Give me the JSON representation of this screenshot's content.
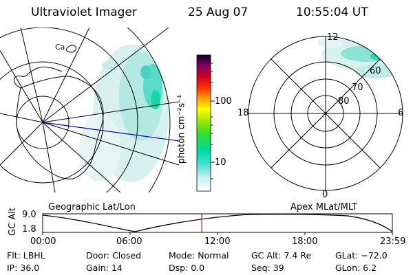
{
  "header": {
    "instrument": "Ultraviolet Imager",
    "date": "25 Aug 07",
    "time": "10:55:04 UT"
  },
  "colorbar": {
    "unit_label": "photon cm⁻²s⁻¹",
    "ticks": [
      "100",
      "10"
    ]
  },
  "left_panel": {
    "caption": "Geographic Lat/Lon"
  },
  "right_panel": {
    "caption": "Apex MLat/MLT",
    "mlt_labels": [
      "12",
      "18",
      "6",
      "0"
    ],
    "mlat_labels": [
      "60",
      "70",
      "80"
    ]
  },
  "altitude_strip": {
    "ylabel": "GC Alt",
    "y_ticks": [
      "9.0",
      "1.8"
    ],
    "x_ticks": [
      "00:00",
      "06:00",
      "12:00",
      "18:00",
      "23:59"
    ],
    "current_time_fraction": 0.455
  },
  "info": {
    "filter": "Flt: LBHL",
    "door": "Door: Closed",
    "mode": "Mode: Normal",
    "gc_alt": "GC Alt: 7.4 Re",
    "glat": "GLat: −72.0",
    "ip": "IP: 36.0",
    "gain": "Gain: 14",
    "dsp": "Dsp:      0.0",
    "seq": "Seq: 39",
    "glon": "GLon:   6.2"
  },
  "colors": {
    "trace_line": "#0000cc",
    "time_marker": "#ff0000"
  }
}
